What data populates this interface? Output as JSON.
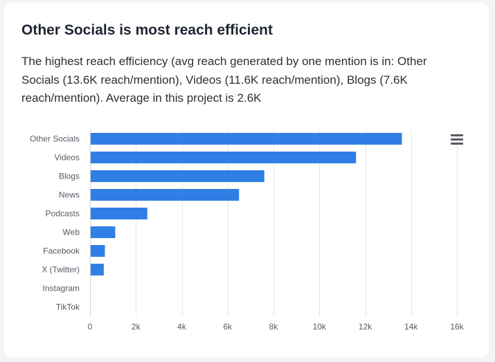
{
  "title": "Other Socials is most reach efficient",
  "description": "The highest reach efficiency (avg reach generated by one mention is in: Other Socials (13.6K reach/mention), Videos (11.6K reach/mention), Blogs (7.6K reach/mention). Average in this project is 2.6K",
  "menu_icon": "hamburger-menu-icon",
  "colors": {
    "bar": "#2f7fe4",
    "grid": "#e6e6e6",
    "background": "#ffffff"
  },
  "chart_data": {
    "type": "bar",
    "orientation": "horizontal",
    "title": "Other Socials is most reach efficient",
    "xlabel": "",
    "ylabel": "",
    "categories": [
      "Other Socials",
      "Videos",
      "Blogs",
      "News",
      "Podcasts",
      "Web",
      "Facebook",
      "X (Twitter)",
      "Instagram",
      "TikTok"
    ],
    "values": [
      13600,
      11600,
      7600,
      6500,
      2500,
      1100,
      650,
      600,
      0,
      0
    ],
    "xlim": [
      0,
      16000
    ],
    "ticks": [
      0,
      2000,
      4000,
      6000,
      8000,
      10000,
      12000,
      14000,
      16000
    ],
    "tick_labels": [
      "0",
      "2k",
      "4k",
      "6k",
      "8k",
      "10k",
      "12k",
      "14k",
      "16k"
    ],
    "grid": true,
    "legend": "none"
  }
}
